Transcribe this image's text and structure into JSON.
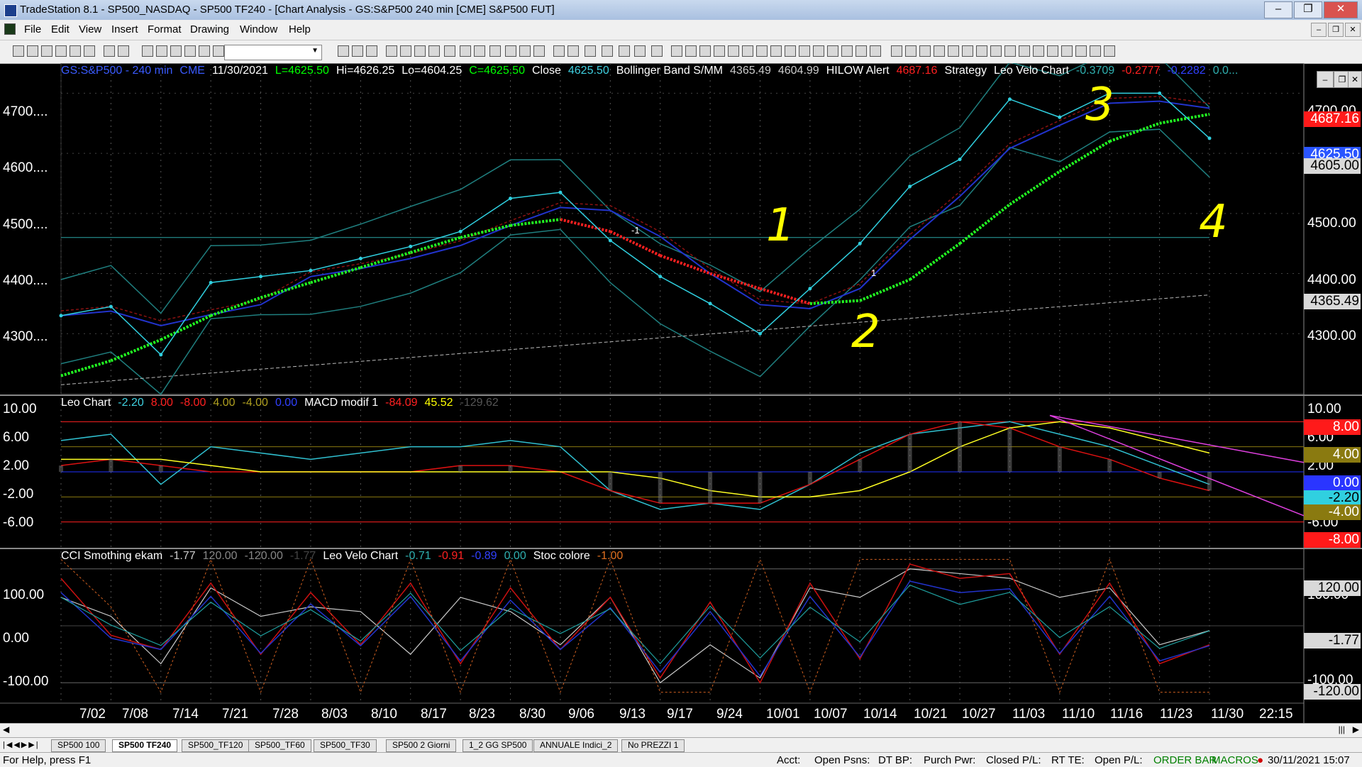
{
  "window": {
    "title": "TradeStation 8.1 - SP500_NASDAQ - SP500 TF240 - [Chart Analysis - GS:S&P500  240 min  [CME] S&P500 FUT]",
    "minimize": "‒",
    "maximize": "❐",
    "close": "✕"
  },
  "menu": [
    "File",
    "Edit",
    "View",
    "Insert",
    "Format",
    "Drawing",
    "Window",
    "Help"
  ],
  "price_pane": {
    "header": [
      {
        "text": "GS:S&P500 - 240 min",
        "color": "#3a5bff"
      },
      {
        "text": "CME",
        "color": "#3a5bff"
      },
      {
        "text": "11/30/2021",
        "color": "#ffffff"
      },
      {
        "text": "L=4625.50",
        "color": "#00ff00"
      },
      {
        "text": "Hi=4626.25",
        "color": "#ffffff"
      },
      {
        "text": "Lo=4604.25",
        "color": "#ffffff"
      },
      {
        "text": "C=4625.50",
        "color": "#00ff00"
      },
      {
        "text": "Close",
        "color": "#ffffff"
      },
      {
        "text": "4625.50",
        "color": "#3fd0e0"
      },
      {
        "text": "Bollinger Band S/MM",
        "color": "#ffffff"
      },
      {
        "text": "4365.49",
        "color": "#cccccc"
      },
      {
        "text": "4604.99",
        "color": "#cccccc"
      },
      {
        "text": "HILOW Alert",
        "color": "#ffffff"
      },
      {
        "text": "4687.16",
        "color": "#ff2020"
      },
      {
        "text": "Strategy",
        "color": "#ffffff"
      },
      {
        "text": "Leo Velo Chart",
        "color": "#ffffff"
      },
      {
        "text": "-0.3709",
        "color": "#2fb0b0"
      },
      {
        "text": "-0.2777",
        "color": "#ff2020"
      },
      {
        "text": "-0.2282",
        "color": "#3040ff"
      },
      {
        "text": "0.0...",
        "color": "#2fb0b0"
      }
    ],
    "axis_ticks": [
      "4700....",
      "4600....",
      "4500....",
      "4400....",
      "4300...."
    ],
    "right_ticks": [
      "4700.00",
      "4600.00",
      "4500.00",
      "4400.00",
      "4300.00"
    ],
    "boxes": [
      {
        "text": "4687.16",
        "bg": "#ff1a1a",
        "fg": "#ffffff"
      },
      {
        "text": "4625.50",
        "bg": "#2a55ff",
        "fg": "#ffffff"
      },
      {
        "text": "4605.00",
        "bg": "#d9d9d9",
        "fg": "#000000"
      },
      {
        "text": "4365.49",
        "bg": "#d9d9d9",
        "fg": "#000000"
      }
    ],
    "annotations": [
      "1",
      "2",
      "3",
      "4"
    ],
    "signal_labels": [
      "-1",
      "1"
    ]
  },
  "leo_pane": {
    "header": [
      {
        "text": "Leo Chart",
        "color": "#ffffff"
      },
      {
        "text": "-2.20",
        "color": "#3fd0e0"
      },
      {
        "text": "8.00",
        "color": "#ff2020"
      },
      {
        "text": "-8.00",
        "color": "#ff2020"
      },
      {
        "text": "4.00",
        "color": "#b0a020"
      },
      {
        "text": "-4.00",
        "color": "#b0a020"
      },
      {
        "text": "0.00",
        "color": "#3040ff"
      },
      {
        "text": "MACD modif 1",
        "color": "#ffffff"
      },
      {
        "text": "-84.09",
        "color": "#ff2020"
      },
      {
        "text": "45.52",
        "color": "#ffff00"
      },
      {
        "text": "-129.62",
        "color": "#555555"
      }
    ],
    "axis_ticks": [
      "10.00",
      "6.00",
      "2.00",
      "-2.00",
      "-6.00"
    ],
    "right_ticks": [
      "10.00",
      "6.00",
      "2.00",
      "-6.00"
    ],
    "boxes": [
      {
        "text": "8.00",
        "bg": "#ff1a1a",
        "fg": "#ffffff"
      },
      {
        "text": "4.00",
        "bg": "#8a7a10",
        "fg": "#ffffff"
      },
      {
        "text": "0.00",
        "bg": "#2a35ff",
        "fg": "#ffffff"
      },
      {
        "text": "-2.20",
        "bg": "#30d0e0",
        "fg": "#000000"
      },
      {
        "text": "-4.00",
        "bg": "#8a7a10",
        "fg": "#ffffff"
      },
      {
        "text": "-8.00",
        "bg": "#ff1a1a",
        "fg": "#ffffff"
      }
    ]
  },
  "cci_pane": {
    "header": [
      {
        "text": "CCI Smothing ekam",
        "color": "#ffffff"
      },
      {
        "text": "-1.77",
        "color": "#cccccc"
      },
      {
        "text": "120.00",
        "color": "#888888"
      },
      {
        "text": "-120.00",
        "color": "#888888"
      },
      {
        "text": "-1.77",
        "color": "#444444"
      },
      {
        "text": "Leo Velo Chart",
        "color": "#ffffff"
      },
      {
        "text": "-0.71",
        "color": "#2fb0b0"
      },
      {
        "text": "-0.91",
        "color": "#ff2020"
      },
      {
        "text": "-0.89",
        "color": "#3040ff"
      },
      {
        "text": "0.00",
        "color": "#2fb0b0"
      },
      {
        "text": "Stoc colore",
        "color": "#ffffff"
      },
      {
        "text": "-1.00",
        "color": "#e07020"
      }
    ],
    "axis_ticks": [
      "100.00",
      "0.00",
      "-100.00"
    ],
    "right_ticks": [
      "100.00",
      "-100.00"
    ],
    "boxes": [
      {
        "text": "120.00",
        "bg": "#d9d9d9",
        "fg": "#000000"
      },
      {
        "text": "-1.77",
        "bg": "#d9d9d9",
        "fg": "#000000"
      },
      {
        "text": "-120.00",
        "bg": "#d9d9d9",
        "fg": "#000000"
      }
    ]
  },
  "dates": [
    "7/02",
    "7/08",
    "7/14",
    "7/21",
    "7/28",
    "8/03",
    "8/10",
    "8/17",
    "8/23",
    "8/30",
    "9/06",
    "9/13",
    "9/17",
    "9/24",
    "10/01",
    "10/07",
    "10/14",
    "10/21",
    "10/27",
    "11/03",
    "11/10",
    "11/16",
    "11/23",
    "11/30",
    "22:15"
  ],
  "tabs": [
    "SP500 100",
    "SP500 TF240",
    "SP500_TF120",
    "SP500_TF60",
    "SP500_TF30",
    "SP500 2 Giorni",
    "1_2 GG SP500",
    "ANNUALE Indici_2",
    "No PREZZI 1"
  ],
  "active_tab": 1,
  "status": {
    "help": "For Help, press F1",
    "acct": "Acct:",
    "open_psns": "Open Psns:",
    "dt_bp": "DT BP:",
    "purch_pwr": "Purch Pwr:",
    "closed_pl": "Closed P/L:",
    "rt_te": "RT TE:",
    "open_pl": "Open P/L:",
    "order_bar": "ORDER BAR",
    "macros": "MACROS",
    "datetime": "30/11/2021 15:07"
  },
  "chart_data": {
    "type": "line",
    "x": [
      "7/02",
      "7/08",
      "7/14",
      "7/21",
      "7/28",
      "8/03",
      "8/10",
      "8/17",
      "8/23",
      "8/30",
      "9/06",
      "9/13",
      "9/17",
      "9/24",
      "10/01",
      "10/07",
      "10/14",
      "10/21",
      "10/27",
      "11/03",
      "11/10",
      "11/16",
      "11/23",
      "11/30"
    ],
    "series": [
      {
        "values": [
          4330,
          4345,
          4265,
          4385,
          4395,
          4405,
          4425,
          4445,
          4470,
          4525,
          4535,
          4455,
          4395,
          4350,
          4300,
          4375,
          4450,
          4545,
          4590,
          4690,
          4660,
          4700,
          4700,
          4625
        ]
      }
    ],
    "ylim": [
      4200,
      4750
    ]
  }
}
